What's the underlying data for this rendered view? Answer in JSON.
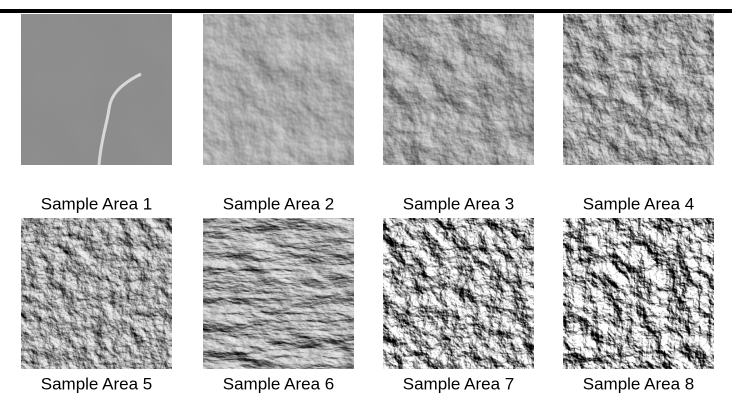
{
  "figure": {
    "panels": [
      {
        "caption": "Sample Area 1"
      },
      {
        "caption": "Sample Area 2"
      },
      {
        "caption": "Sample Area 3"
      },
      {
        "caption": "Sample Area 4"
      },
      {
        "caption": "Sample Area 5"
      },
      {
        "caption": "Sample Area 6"
      },
      {
        "caption": "Sample Area 7"
      },
      {
        "caption": "Sample Area 8"
      }
    ]
  }
}
